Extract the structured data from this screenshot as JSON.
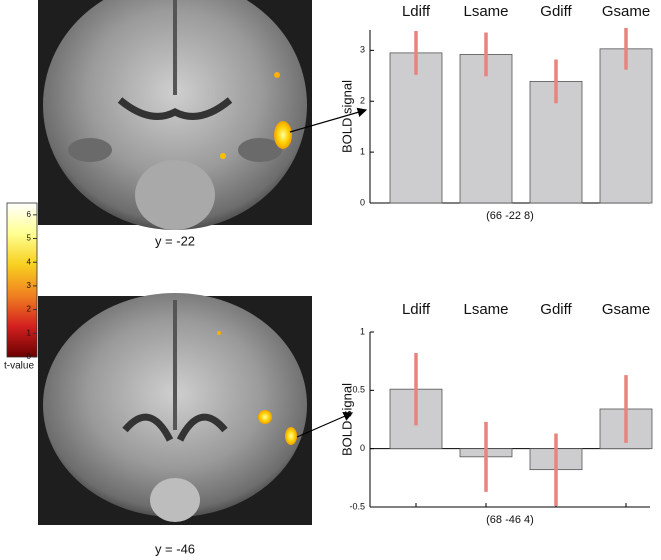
{
  "chart_data": [
    {
      "type": "bar",
      "categories": [
        "Ldiff",
        "Lsame",
        "Gdiff",
        "Gsame"
      ],
      "values": [
        2.95,
        2.92,
        2.39,
        3.03
      ],
      "errors": [
        0.43,
        0.43,
        0.43,
        0.41
      ],
      "color": "#cdcdcf",
      "error_color": "#e8837d",
      "ylim": [
        0,
        3.4
      ],
      "yticks": [
        0,
        1,
        2,
        3
      ],
      "ylabel": "BOLD signal",
      "xlabel": "(66 -22 8)"
    },
    {
      "type": "bar",
      "categories": [
        "Ldiff",
        "Lsame",
        "Gdiff",
        "Gsame"
      ],
      "values": [
        0.51,
        -0.07,
        -0.18,
        0.34
      ],
      "errors": [
        0.31,
        0.3,
        0.31,
        0.29
      ],
      "color": "#cdcdcf",
      "error_color": "#e8837d",
      "ylim": [
        -0.5,
        1
      ],
      "yticks": [
        -0.5,
        0,
        0.5,
        1
      ],
      "ylabel": "BOLD signal",
      "xlabel": "(68 -46 4)"
    },
    {
      "type": "colorbar",
      "label": "t-value",
      "ylim": [
        0,
        6.5
      ],
      "yticks": [
        0,
        1,
        2,
        3,
        4,
        5,
        6
      ],
      "colors": [
        "#6b0000",
        "#d42020",
        "#f08020",
        "#f8d020",
        "#ffff90",
        "#ffffff"
      ]
    }
  ],
  "images": [
    {
      "caption": "y = -22"
    },
    {
      "caption": "y = -46"
    }
  ]
}
